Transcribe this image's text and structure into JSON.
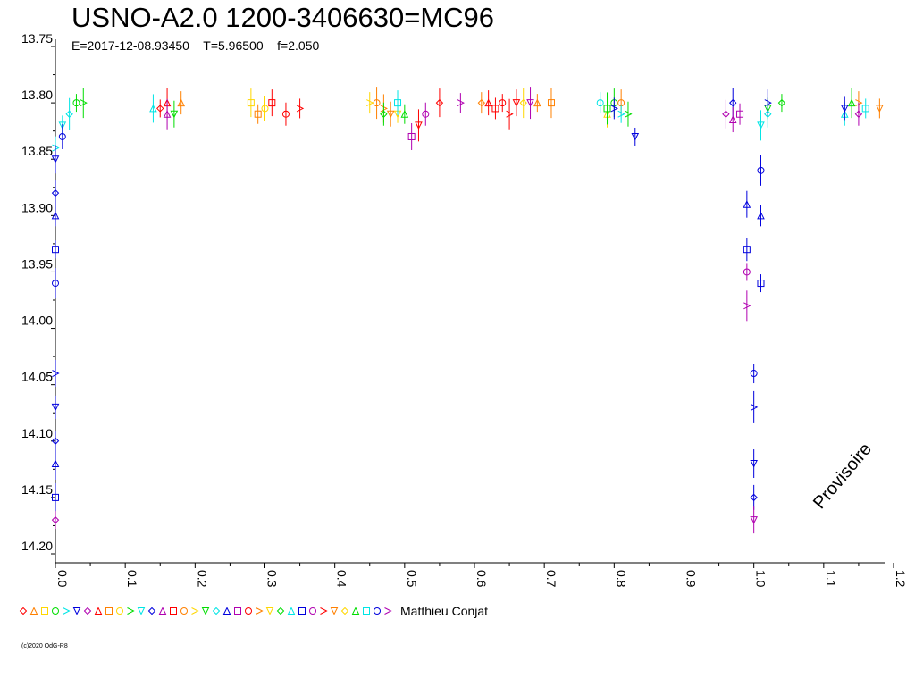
{
  "chart_data": {
    "type": "scatter",
    "title": "USNO-A2.0 1200-3406630=MC96",
    "subtitle": {
      "epoch": "E=2017-12-08.93450",
      "period": "T=5.96500",
      "factor": "f=2.050"
    },
    "xlabel": "",
    "ylabel": "",
    "xlim": [
      0.0,
      1.2
    ],
    "ylim": [
      13.75,
      14.2
    ],
    "y_inverted": true,
    "x_tick_labels": [
      "0.0",
      "0.1",
      "0.2",
      "0.3",
      "0.4",
      "0.5",
      "0.6",
      "0.7",
      "0.8",
      "0.9",
      "1.0",
      "1.1",
      "1.2"
    ],
    "y_tick_labels": [
      "13.75",
      "13.80",
      "13.85",
      "13.90",
      "13.95",
      "14.00",
      "14.05",
      "14.10",
      "14.15",
      "14.20"
    ],
    "grid": false,
    "legend_position": "bottom-left",
    "observer": "Matthieu Conjat",
    "watermark": "Provisoire",
    "copyright": "(c)2020 OdG-R8",
    "series_colors": [
      "#ff0000",
      "#ff8000",
      "#ffd700",
      "#00dd00",
      "#00e5e5",
      "#0000dd",
      "#b000b0"
    ],
    "series": [
      {
        "color": "#ff0000",
        "points": [
          [
            0.15,
            13.805
          ],
          [
            0.16,
            13.8
          ],
          [
            0.31,
            13.8
          ],
          [
            0.33,
            13.81
          ],
          [
            0.35,
            13.805
          ],
          [
            0.52,
            13.82
          ],
          [
            0.55,
            13.8
          ],
          [
            0.62,
            13.8
          ],
          [
            0.63,
            13.805
          ],
          [
            0.64,
            13.8
          ],
          [
            0.65,
            13.81
          ],
          [
            0.66,
            13.8
          ]
        ]
      },
      {
        "color": "#ff8000",
        "points": [
          [
            0.18,
            13.8
          ],
          [
            0.29,
            13.81
          ],
          [
            0.46,
            13.8
          ],
          [
            0.47,
            13.805
          ],
          [
            0.48,
            13.81
          ],
          [
            0.61,
            13.8
          ],
          [
            0.69,
            13.8
          ],
          [
            0.71,
            13.8
          ],
          [
            0.81,
            13.8
          ],
          [
            1.15,
            13.8
          ],
          [
            1.18,
            13.805
          ]
        ]
      },
      {
        "color": "#ffd700",
        "points": [
          [
            0.28,
            13.8
          ],
          [
            0.3,
            13.805
          ],
          [
            0.45,
            13.8
          ],
          [
            0.49,
            13.81
          ],
          [
            0.67,
            13.8
          ],
          [
            0.79,
            13.81
          ]
        ]
      },
      {
        "color": "#00dd00",
        "points": [
          [
            0.03,
            13.8
          ],
          [
            0.04,
            13.8
          ],
          [
            0.17,
            13.81
          ],
          [
            0.47,
            13.81
          ],
          [
            0.5,
            13.81
          ],
          [
            0.79,
            13.805
          ],
          [
            0.8,
            13.8
          ],
          [
            0.82,
            13.81
          ],
          [
            1.02,
            13.805
          ],
          [
            1.04,
            13.8
          ],
          [
            1.14,
            13.8
          ]
        ]
      },
      {
        "color": "#00e5e5",
        "points": [
          [
            0.0,
            13.84
          ],
          [
            0.01,
            13.82
          ],
          [
            0.02,
            13.81
          ],
          [
            0.14,
            13.805
          ],
          [
            0.49,
            13.8
          ],
          [
            0.78,
            13.8
          ],
          [
            0.81,
            13.81
          ],
          [
            1.01,
            13.82
          ],
          [
            1.02,
            13.81
          ],
          [
            1.13,
            13.81
          ],
          [
            1.16,
            13.805
          ]
        ]
      },
      {
        "color": "#0000dd",
        "points": [
          [
            0.0,
            13.85
          ],
          [
            0.0,
            13.88
          ],
          [
            0.0,
            13.9
          ],
          [
            0.0,
            13.93
          ],
          [
            0.0,
            13.96
          ],
          [
            0.0,
            14.04
          ],
          [
            0.0,
            14.07
          ],
          [
            0.0,
            14.1
          ],
          [
            0.0,
            14.12
          ],
          [
            0.0,
            14.15
          ],
          [
            0.01,
            13.83
          ],
          [
            0.8,
            13.805
          ],
          [
            0.83,
            13.83
          ],
          [
            0.97,
            13.8
          ],
          [
            0.99,
            13.89
          ],
          [
            0.99,
            13.93
          ],
          [
            1.0,
            14.04
          ],
          [
            1.0,
            14.07
          ],
          [
            1.0,
            14.12
          ],
          [
            1.0,
            14.15
          ],
          [
            1.01,
            13.9
          ],
          [
            1.01,
            13.96
          ],
          [
            1.01,
            13.86
          ],
          [
            1.02,
            13.8
          ],
          [
            1.13,
            13.805
          ]
        ]
      },
      {
        "color": "#b000b0",
        "points": [
          [
            0.0,
            14.17
          ],
          [
            0.16,
            13.81
          ],
          [
            0.51,
            13.83
          ],
          [
            0.53,
            13.81
          ],
          [
            0.58,
            13.8
          ],
          [
            0.68,
            13.8
          ],
          [
            0.96,
            13.81
          ],
          [
            0.97,
            13.815
          ],
          [
            0.98,
            13.81
          ],
          [
            0.99,
            13.95
          ],
          [
            0.99,
            13.98
          ],
          [
            1.0,
            14.17
          ],
          [
            1.15,
            13.81
          ]
        ]
      }
    ]
  }
}
